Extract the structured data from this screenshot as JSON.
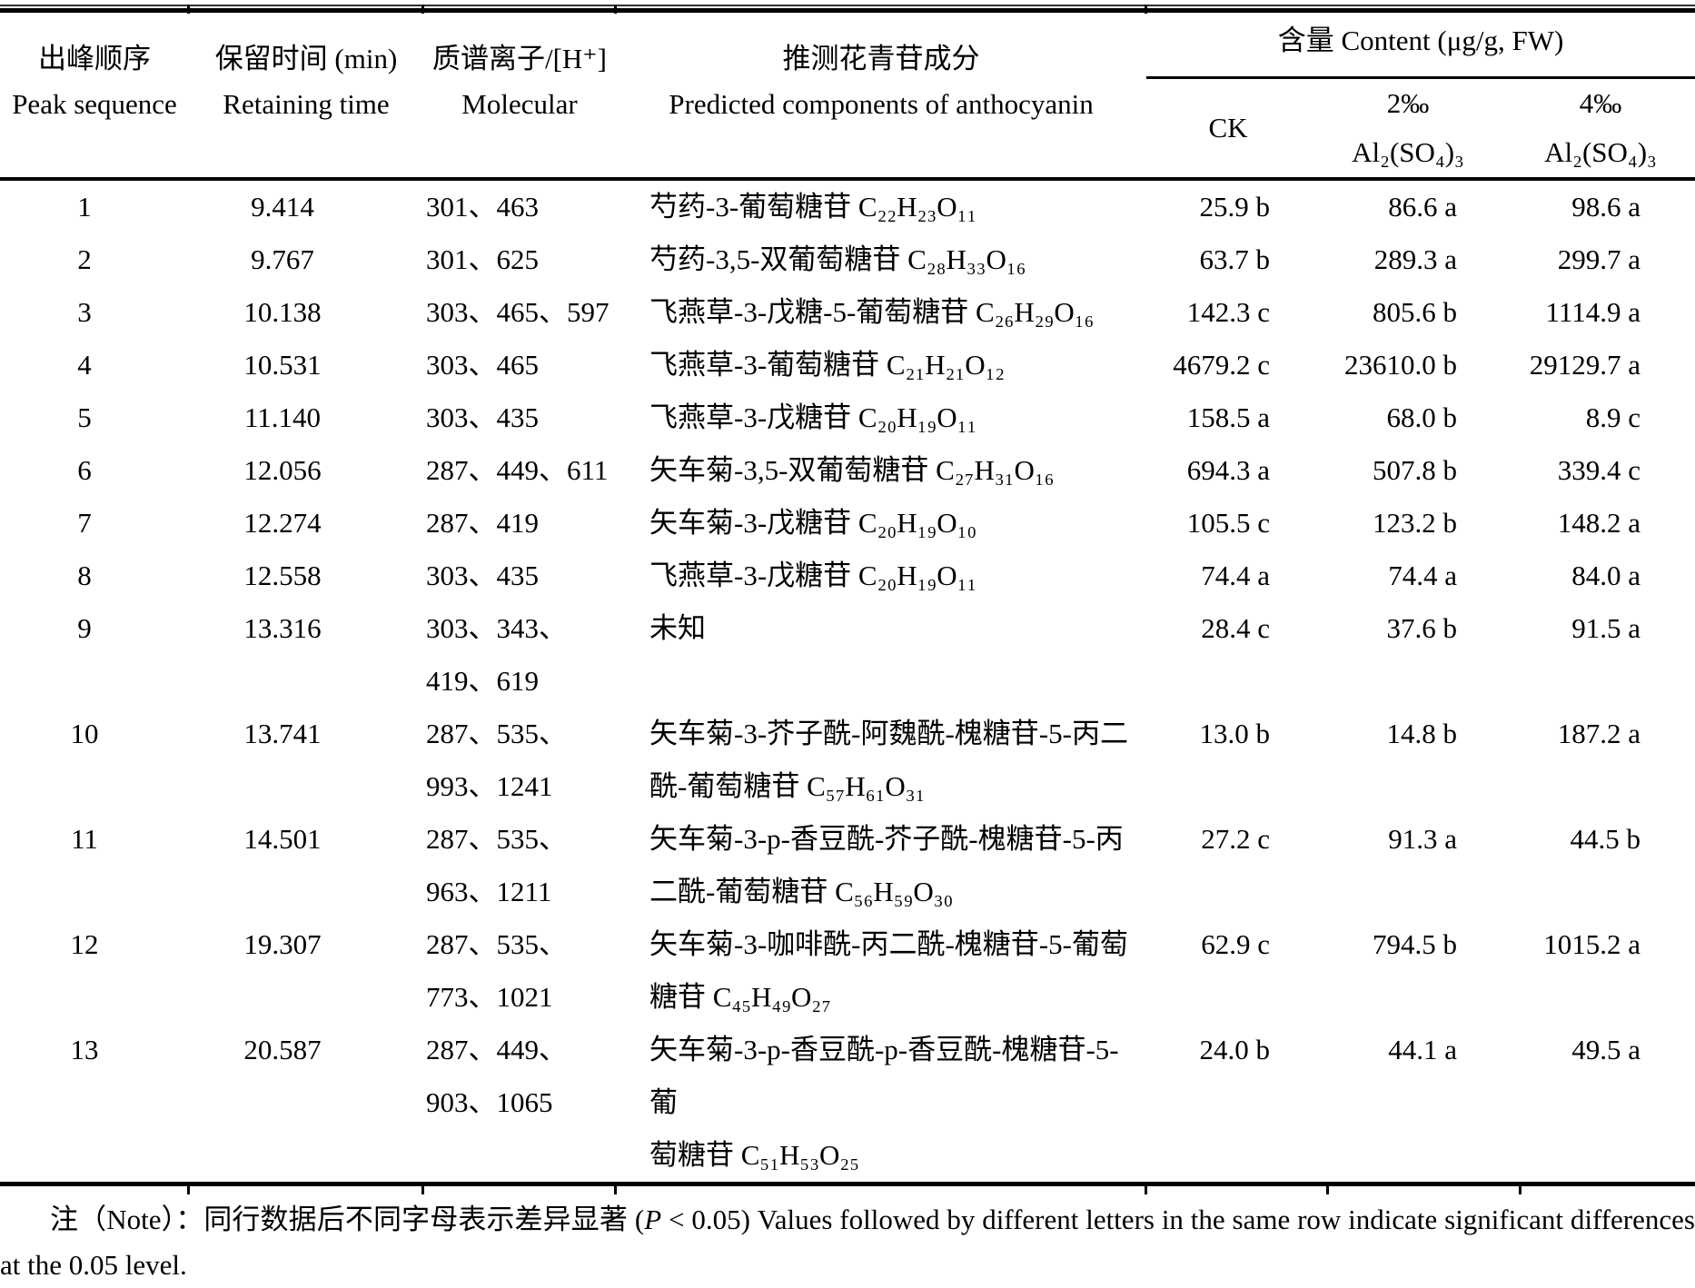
{
  "header": {
    "peak_zh": "出峰顺序",
    "peak_en": "Peak sequence",
    "time_zh": "保留时间 (min)",
    "time_en": "Retaining time",
    "ions_zh": "质谱离子/[H⁺]",
    "ions_en": "Molecular",
    "component_zh": "推测花青苷成分",
    "component_en": "Predicted components of anthocyanin",
    "content_group": "含量 Content (μg/g, FW)",
    "treatments": [
      "CK",
      "2‰ Al₂(SO₄)₃",
      "4‰ Al₂(SO₄)₃"
    ]
  },
  "rows": [
    {
      "peak": "1",
      "time": "9.414",
      "ions": [
        "301、463"
      ],
      "component": [
        "芍药-3-葡萄糖苷 C₂₂H₂₃O₁₁"
      ],
      "ck": "25.9 b",
      "al2": "86.6 a",
      "al4": "98.6 a"
    },
    {
      "peak": "2",
      "time": "9.767",
      "ions": [
        "301、625"
      ],
      "component": [
        "芍药-3,5-双葡萄糖苷 C₂₈H₃₃O₁₆"
      ],
      "ck": "63.7 b",
      "al2": "289.3 a",
      "al4": "299.7 a"
    },
    {
      "peak": "3",
      "time": "10.138",
      "ions": [
        "303、465、597"
      ],
      "component": [
        "飞燕草-3-戊糖-5-葡萄糖苷 C₂₆H₂₉O₁₆"
      ],
      "ck": "142.3 c",
      "al2": "805.6 b",
      "al4": "1114.9 a"
    },
    {
      "peak": "4",
      "time": "10.531",
      "ions": [
        "303、465"
      ],
      "component": [
        "飞燕草-3-葡萄糖苷 C₂₁H₂₁O₁₂"
      ],
      "ck": "4679.2 c",
      "al2": "23610.0 b",
      "al4": "29129.7 a"
    },
    {
      "peak": "5",
      "time": "11.140",
      "ions": [
        "303、435"
      ],
      "component": [
        "飞燕草-3-戊糖苷 C₂₀H₁₉O₁₁"
      ],
      "ck": "158.5 a",
      "al2": "68.0 b",
      "al4": "8.9 c"
    },
    {
      "peak": "6",
      "time": "12.056",
      "ions": [
        "287、449、611"
      ],
      "component": [
        "矢车菊-3,5-双葡萄糖苷 C₂₇H₃₁O₁₆"
      ],
      "ck": "694.3 a",
      "al2": "507.8 b",
      "al4": "339.4 c"
    },
    {
      "peak": "7",
      "time": "12.274",
      "ions": [
        "287、419"
      ],
      "component": [
        "矢车菊-3-戊糖苷 C₂₀H₁₉O₁₀"
      ],
      "ck": "105.5 c",
      "al2": "123.2 b",
      "al4": "148.2 a"
    },
    {
      "peak": "8",
      "time": "12.558",
      "ions": [
        "303、435"
      ],
      "component": [
        "飞燕草-3-戊糖苷 C₂₀H₁₉O₁₁"
      ],
      "ck": "74.4 a",
      "al2": "74.4 a",
      "al4": "84.0 a"
    },
    {
      "peak": "9",
      "time": "13.316",
      "ions": [
        "303、343、",
        "419、619"
      ],
      "component": [
        "未知"
      ],
      "ck": "28.4 c",
      "al2": "37.6 b",
      "al4": "91.5 a"
    },
    {
      "peak": "10",
      "time": "13.741",
      "ions": [
        "287、535、",
        "993、1241"
      ],
      "component": [
        "矢车菊-3-芥子酰-阿魏酰-槐糖苷-5-丙二",
        "酰-葡萄糖苷 C₅₇H₆₁O₃₁"
      ],
      "ck": "13.0 b",
      "al2": "14.8 b",
      "al4": "187.2 a"
    },
    {
      "peak": "11",
      "time": "14.501",
      "ions": [
        "287、535、",
        "963、1211"
      ],
      "component": [
        "矢车菊-3-p-香豆酰-芥子酰-槐糖苷-5-丙",
        "二酰-葡萄糖苷 C₅₆H₅₉O₃₀"
      ],
      "ck": "27.2 c",
      "al2": "91.3 a",
      "al4": "44.5 b"
    },
    {
      "peak": "12",
      "time": "19.307",
      "ions": [
        "287、535、",
        "773、1021"
      ],
      "component": [
        "矢车菊-3-咖啡酰-丙二酰-槐糖苷-5-葡萄",
        "糖苷 C₄₅H₄₉O₂₇"
      ],
      "ck": "62.9 c",
      "al2": "794.5 b",
      "al4": "1015.2 a"
    },
    {
      "peak": "13",
      "time": "20.587",
      "ions": [
        "287、449、",
        "903、1065"
      ],
      "component": [
        "矢车菊-3-p-香豆酰-p-香豆酰-槐糖苷-5-葡",
        "萄糖苷 C₅₁H₅₃O₂₅"
      ],
      "ck": "24.0 b",
      "al2": "44.1 a",
      "al4": "49.5 a"
    }
  ],
  "note": {
    "pre": "注（Note）：同行数据后不同字母表示差异显著 (",
    "p_italic": "P",
    "post": " < 0.05) Values followed by different letters in the same row indicate significant differences at the 0.05 level."
  }
}
